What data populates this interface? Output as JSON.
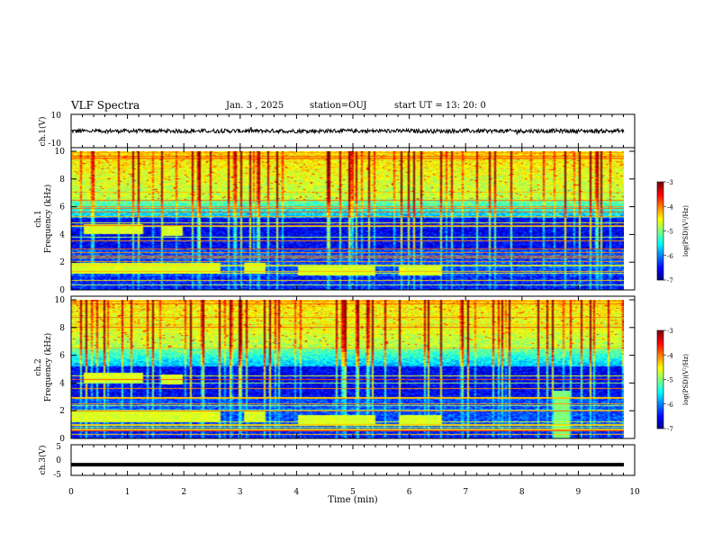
{
  "header": {
    "title": "VLF Spectra",
    "date": "Jan. 3 , 2025",
    "station": "station=OUJ",
    "start": "start UT = 13: 20: 0"
  },
  "chart_data": [
    {
      "type": "line",
      "name_label": "ch.1(V)",
      "ylabel": "ch.1(V)",
      "ylim": [
        -10,
        10
      ],
      "yticks": [
        "10",
        "-10"
      ],
      "xlim": [
        0,
        10
      ],
      "mean": 0,
      "note_amplitude": 1.2
    },
    {
      "type": "heatmap",
      "ylabel": "ch.1\nFrequency (kHz)",
      "ylabel_line1": "ch.1",
      "ylabel_line2": "Frequency (kHz)",
      "ylim": [
        0,
        10
      ],
      "yticks": [
        "0",
        "2",
        "4",
        "6",
        "8",
        "10"
      ],
      "xlim": [
        0,
        9.85
      ],
      "colorbar": {
        "label": "log(PSD)(V²/Hz)",
        "range": [
          -7,
          -3
        ],
        "ticks": [
          "-3",
          "-4",
          "-5",
          "-6",
          "-7"
        ]
      }
    },
    {
      "type": "heatmap",
      "ylabel_line1": "ch.2",
      "ylabel_line2": "Frequency (kHz)",
      "ylim": [
        0,
        10
      ],
      "yticks": [
        "0",
        "2",
        "4",
        "6",
        "8",
        "10"
      ],
      "xlim": [
        0,
        9.85
      ],
      "colorbar": {
        "label": "log(PSD)(V²/Hz)",
        "range": [
          -7,
          -3
        ],
        "ticks": [
          "-3",
          "-4",
          "-5",
          "-6",
          "-7"
        ]
      }
    },
    {
      "type": "line",
      "ylabel": "ch.3(V)",
      "ylim": [
        -5,
        5
      ],
      "yticks": [
        "5",
        "0",
        "-5"
      ],
      "xlim": [
        0,
        10
      ],
      "value": -1.5,
      "xlabel": "Time (min)",
      "xticks": [
        "0",
        "1",
        "2",
        "3",
        "4",
        "5",
        "6",
        "7",
        "8",
        "9",
        "10"
      ]
    }
  ]
}
